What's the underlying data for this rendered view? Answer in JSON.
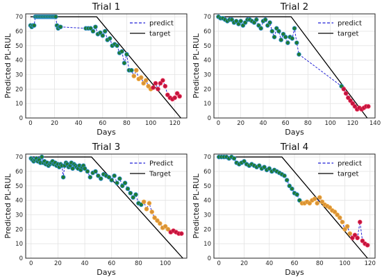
{
  "colors": {
    "predict_line": "#1f1fd6",
    "target_line": "#000000",
    "point_green": "#1f7a32",
    "point_green_edge": "#2f8fd8",
    "point_orange": "#d89236",
    "point_orange_edge": "#f5b14a",
    "point_red": "#c0143c",
    "point_red_edge": "#f03c64",
    "grid": "#e3e3e3",
    "axes": "#222222"
  },
  "chart_data": [
    {
      "type": "line",
      "title": "Trial 1",
      "xlabel": "Days",
      "ylabel": "Predicted PL-RUL",
      "xlim": [
        -4,
        130
      ],
      "ylim": [
        0,
        72
      ],
      "xticks": [
        0,
        20,
        40,
        60,
        80,
        100,
        120
      ],
      "yticks": [
        0,
        10,
        20,
        30,
        40,
        50,
        60,
        70
      ],
      "grid": true,
      "legend": {
        "position": "top-right",
        "predict_label": "predict",
        "target_label": "target"
      },
      "target": {
        "x": [
          0,
          55,
          125
        ],
        "y": [
          70,
          70,
          0
        ]
      },
      "series": [
        {
          "name": "predict",
          "style": "dashed",
          "x": [
            0,
            1,
            2,
            3,
            4,
            5,
            6,
            7,
            8,
            9,
            10,
            11,
            12,
            13,
            14,
            15,
            16,
            17,
            18,
            19,
            20,
            21,
            22,
            23,
            24,
            25,
            46,
            48,
            50,
            52,
            54,
            56,
            58,
            60,
            62,
            64,
            66,
            68,
            70,
            72,
            74,
            76,
            78,
            80,
            82,
            84,
            86,
            88,
            90,
            92,
            94,
            96,
            98,
            100,
            102,
            104,
            106,
            108,
            110,
            112,
            114,
            116,
            118,
            120,
            122,
            124
          ],
          "y": [
            64,
            63,
            64,
            64,
            70,
            70,
            70,
            70,
            70,
            70,
            70,
            70,
            70,
            70,
            70,
            70,
            70,
            70,
            70,
            70,
            70,
            70,
            64,
            62,
            63,
            63,
            62,
            62,
            62,
            60,
            63,
            58,
            59,
            57,
            60,
            54,
            55,
            50,
            51,
            50,
            45,
            46,
            38,
            44,
            33,
            33,
            29,
            33,
            27,
            28,
            24,
            26,
            22,
            20,
            21,
            24,
            20,
            24,
            26,
            22,
            16,
            14,
            13,
            14,
            17,
            15
          ],
          "color_groups": {
            "green_until_x": 86,
            "orange_until_x": 102
          }
        }
      ]
    },
    {
      "type": "line",
      "title": "Trial 2",
      "xlabel": "Days",
      "ylabel": "Predicted PL-RUL",
      "xlim": [
        -4,
        140
      ],
      "ylim": [
        0,
        72
      ],
      "xticks": [
        0,
        20,
        40,
        60,
        80,
        100,
        120,
        140
      ],
      "yticks": [
        0,
        10,
        20,
        30,
        40,
        50,
        60,
        70
      ],
      "grid": true,
      "legend": {
        "position": "top-right",
        "predict_label": "predict",
        "target_label": "target"
      },
      "target": {
        "x": [
          0,
          65,
          133
        ],
        "y": [
          70,
          70,
          0
        ]
      },
      "series": [
        {
          "name": "predict",
          "style": "dashed",
          "x": [
            0,
            2,
            4,
            6,
            8,
            10,
            12,
            14,
            16,
            18,
            20,
            22,
            24,
            26,
            28,
            30,
            32,
            34,
            36,
            38,
            40,
            42,
            44,
            46,
            48,
            50,
            52,
            54,
            56,
            58,
            60,
            62,
            64,
            66,
            68,
            70,
            72,
            110,
            112,
            114,
            116,
            118,
            120,
            122,
            124,
            126,
            128,
            130,
            132,
            134
          ],
          "y": [
            70,
            69,
            69,
            68,
            67,
            68,
            68,
            66,
            67,
            65,
            67,
            64,
            66,
            68,
            68,
            67,
            66,
            68,
            64,
            62,
            67,
            68,
            64,
            66,
            60,
            56,
            62,
            60,
            54,
            58,
            56,
            52,
            56,
            55,
            62,
            52,
            44,
            22,
            20,
            17,
            14,
            12,
            10,
            8,
            6,
            7,
            6,
            7,
            8,
            8
          ],
          "color_groups": {
            "green_until_x": 111,
            "orange_until_x": 111
          }
        }
      ]
    },
    {
      "type": "line",
      "title": "Trial 3",
      "xlabel": "Days",
      "ylabel": "Predicted PL-RUL",
      "xlim": [
        -4,
        116
      ],
      "ylim": [
        0,
        72
      ],
      "xticks": [
        0,
        20,
        40,
        60,
        80,
        100
      ],
      "yticks": [
        0,
        10,
        20,
        30,
        40,
        50,
        60,
        70
      ],
      "grid": true,
      "legend": {
        "position": "top-right",
        "predict_label": "Predict",
        "target_label": "Target"
      },
      "target": {
        "x": [
          0,
          45,
          113
        ],
        "y": [
          70,
          70,
          0
        ]
      },
      "series": [
        {
          "name": "Predict",
          "style": "dashed",
          "x": [
            0,
            1,
            2,
            3,
            4,
            5,
            6,
            7,
            8,
            9,
            10,
            11,
            12,
            13,
            14,
            15,
            16,
            17,
            18,
            19,
            20,
            21,
            22,
            23,
            24,
            25,
            26,
            27,
            28,
            29,
            30,
            31,
            32,
            33,
            34,
            35,
            36,
            37,
            38,
            39,
            40,
            42,
            44,
            46,
            48,
            50,
            52,
            54,
            56,
            58,
            60,
            62,
            64,
            66,
            68,
            70,
            72,
            74,
            76,
            78,
            80,
            82,
            84,
            86,
            88,
            90,
            92,
            94,
            96,
            98,
            100,
            102,
            104,
            106,
            108,
            110,
            112
          ],
          "y": [
            69,
            68,
            67,
            68,
            69,
            67,
            68,
            66,
            70,
            66,
            67,
            65,
            66,
            64,
            65,
            66,
            67,
            65,
            66,
            64,
            65,
            63,
            65,
            64,
            56,
            64,
            66,
            65,
            63,
            64,
            66,
            62,
            65,
            64,
            63,
            62,
            64,
            61,
            63,
            64,
            62,
            60,
            56,
            59,
            60,
            57,
            55,
            58,
            57,
            56,
            54,
            57,
            52,
            55,
            50,
            52,
            48,
            45,
            42,
            44,
            38,
            37,
            39,
            34,
            38,
            32,
            28,
            26,
            24,
            21,
            22,
            20,
            18,
            19,
            18,
            17,
            17
          ],
          "color_groups": {
            "green_until_x": 84,
            "orange_until_x": 104
          }
        }
      ]
    },
    {
      "type": "line",
      "title": "Trial 4",
      "xlabel": "Days",
      "ylabel": "Predicted PL-RUL",
      "xlim": [
        -4,
        124
      ],
      "ylim": [
        0,
        72
      ],
      "xticks": [
        0,
        20,
        40,
        60,
        80,
        100,
        120
      ],
      "yticks": [
        0,
        10,
        20,
        30,
        40,
        50,
        60,
        70
      ],
      "grid": true,
      "legend": {
        "position": "top-right",
        "predict_label": "predict",
        "target_label": "target"
      },
      "target": {
        "x": [
          0,
          50,
          118
        ],
        "y": [
          70,
          70,
          0
        ]
      },
      "series": [
        {
          "name": "predict",
          "style": "dashed",
          "x": [
            0,
            2,
            4,
            6,
            8,
            10,
            12,
            14,
            16,
            18,
            20,
            22,
            24,
            26,
            28,
            30,
            32,
            34,
            36,
            38,
            40,
            42,
            44,
            46,
            48,
            50,
            52,
            54,
            56,
            58,
            60,
            62,
            64,
            66,
            68,
            70,
            72,
            74,
            76,
            78,
            80,
            82,
            84,
            86,
            88,
            90,
            92,
            94,
            96,
            98,
            100,
            102,
            104,
            106,
            108,
            110,
            112,
            114,
            116,
            118
          ],
          "y": [
            70,
            70,
            70,
            70,
            69,
            70,
            69,
            66,
            65,
            66,
            67,
            65,
            64,
            65,
            64,
            63,
            64,
            62,
            63,
            61,
            62,
            60,
            61,
            60,
            59,
            58,
            57,
            54,
            50,
            48,
            45,
            44,
            40,
            38,
            38,
            39,
            38,
            40,
            41,
            38,
            42,
            39,
            37,
            36,
            35,
            33,
            32,
            30,
            28,
            25,
            20,
            22,
            17,
            14,
            16,
            14,
            25,
            12,
            10,
            9
          ],
          "color_groups": {
            "green_until_x": 66,
            "orange_until_x": 106
          }
        }
      ]
    }
  ]
}
